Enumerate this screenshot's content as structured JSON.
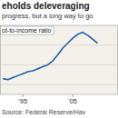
{
  "chart_data": {
    "type": "line",
    "title": "eholds deleveraging",
    "subtitle": "progress, but a long way to go",
    "y_label": "ot-to-income ratio",
    "source": "Source: Federal Reserve/Hav",
    "x": [
      1991,
      1992,
      1993,
      1994,
      1995,
      1996,
      1997,
      1998,
      1999,
      2000,
      2001,
      2002,
      2003,
      2004,
      2005,
      2006,
      2007,
      2008,
      2009,
      2010
    ],
    "values": [
      86,
      85,
      87,
      89,
      91,
      93,
      94,
      96,
      98,
      100,
      104,
      110,
      117,
      122,
      127,
      131,
      133,
      130,
      126,
      122
    ],
    "color": "#1f5fa8",
    "xlim": [
      1990.5,
      2014
    ],
    "ylim": [
      70,
      140
    ],
    "xticks": [
      {
        "value": 1995,
        "label": "'95"
      },
      {
        "value": 2005,
        "label": "'05"
      }
    ],
    "yticks": [
      80,
      100,
      120
    ],
    "grid": true,
    "tick_labels": "x"
  }
}
